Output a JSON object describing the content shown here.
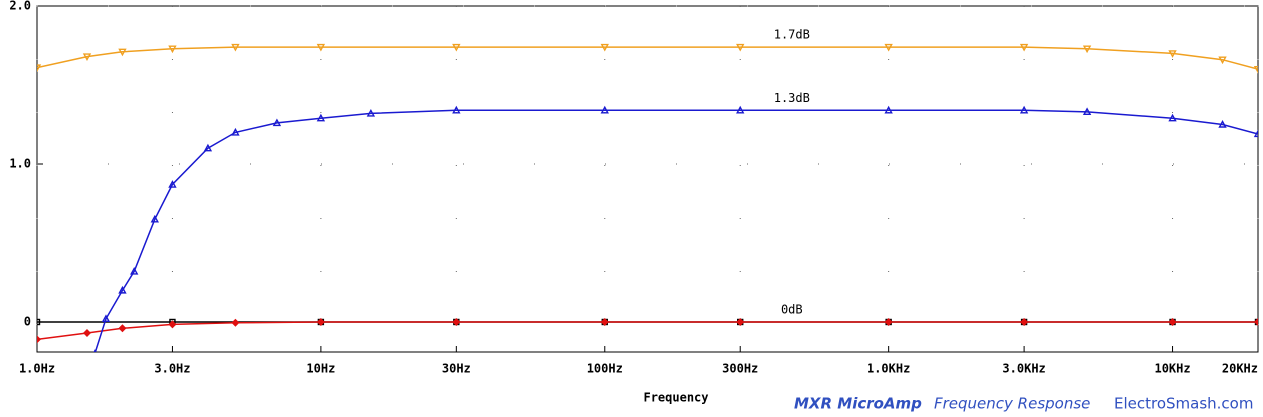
{
  "chart_data": {
    "type": "line",
    "x_label": "Frequency",
    "footer": [
      "MXR MicroAmp",
      "Frequency Response",
      "ElectroSmash.com"
    ],
    "xscale": "log",
    "xlim": [
      1,
      20000
    ],
    "ylim": [
      -0.19,
      2.0
    ],
    "xticks": [
      {
        "value": 1,
        "label": "1.0Hz"
      },
      {
        "value": 3,
        "label": "3.0Hz"
      },
      {
        "value": 10,
        "label": "10Hz"
      },
      {
        "value": 30,
        "label": "30Hz"
      },
      {
        "value": 100,
        "label": "100Hz"
      },
      {
        "value": 300,
        "label": "300Hz"
      },
      {
        "value": 1000,
        "label": "1.0KHz"
      },
      {
        "value": 3000,
        "label": "3.0KHz"
      },
      {
        "value": 10000,
        "label": "10KHz"
      },
      {
        "value": 20000,
        "label": "20KHz"
      }
    ],
    "yticks": [
      0,
      {
        "value": 1,
        "label": "1.0"
      },
      {
        "value": 2,
        "label": "2.0"
      }
    ],
    "grid": true,
    "series": [
      {
        "name": "1.7dB",
        "color": "#f0a020",
        "marker": "down",
        "x": [
          1,
          1.5,
          2,
          3,
          5,
          10,
          30,
          100,
          300,
          1000,
          3000,
          5000,
          10000,
          15000,
          20000
        ],
        "values": [
          1.61,
          1.68,
          1.71,
          1.73,
          1.74,
          1.74,
          1.74,
          1.74,
          1.74,
          1.74,
          1.74,
          1.73,
          1.7,
          1.66,
          1.6
        ]
      },
      {
        "name": "1.3dB",
        "color": "#1a1ad0",
        "marker": "up",
        "x": [
          1.6,
          1.75,
          2,
          2.2,
          2.6,
          3,
          4,
          5,
          7,
          10,
          15,
          30,
          100,
          300,
          1000,
          3000,
          5000,
          10000,
          15000,
          20000
        ],
        "values": [
          -0.2,
          0.02,
          0.2,
          0.32,
          0.65,
          0.87,
          1.1,
          1.2,
          1.26,
          1.29,
          1.32,
          1.34,
          1.34,
          1.34,
          1.34,
          1.34,
          1.33,
          1.29,
          1.25,
          1.19
        ]
      },
      {
        "color": "#e01010",
        "marker": "diamond",
        "x": [
          1,
          1.5,
          2,
          3,
          5,
          10,
          30,
          100,
          300,
          1000,
          3000,
          10000,
          20000
        ],
        "values": [
          -0.11,
          -0.07,
          -0.04,
          -0.015,
          -0.005,
          0,
          0,
          0,
          0,
          0,
          0,
          0,
          0
        ]
      },
      {
        "name": "0dB",
        "color": "#000000",
        "marker": "square",
        "x": [
          1,
          3,
          10,
          30,
          100,
          300,
          1000,
          3000,
          10000,
          20000
        ],
        "values": [
          0,
          0,
          0,
          0,
          0,
          0,
          0,
          0,
          0,
          0
        ]
      }
    ]
  }
}
